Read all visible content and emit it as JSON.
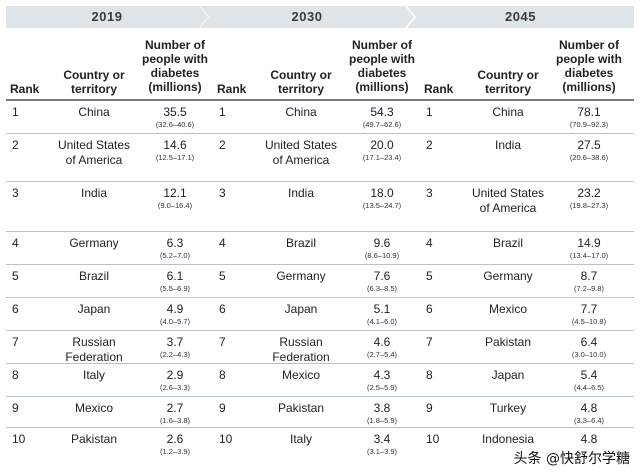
{
  "years": [
    "2019",
    "2030",
    "2045"
  ],
  "headers": {
    "rank": "Rank",
    "country": "Country or territory",
    "number": "Number of people with diabetes (millions)"
  },
  "tables": [
    {
      "year": "2019",
      "rows": [
        {
          "rank": "1",
          "country": "China",
          "value": "35.5",
          "ci": "(32.6–40.6)"
        },
        {
          "rank": "2",
          "country": "United States of America",
          "value": "14.6",
          "ci": "(12.5–17.1)"
        },
        {
          "rank": "3",
          "country": "India",
          "value": "12.1",
          "ci": "(9.0–16.4)"
        },
        {
          "rank": "4",
          "country": "Germany",
          "value": "6.3",
          "ci": "(5.2–7.0)"
        },
        {
          "rank": "5",
          "country": "Brazil",
          "value": "6.1",
          "ci": "(5.5–6.9)"
        },
        {
          "rank": "6",
          "country": "Japan",
          "value": "4.9",
          "ci": "(4.0–5.7)"
        },
        {
          "rank": "7",
          "country": "Russian Federation",
          "value": "3.7",
          "ci": "(2.2–4.3)"
        },
        {
          "rank": "8",
          "country": "Italy",
          "value": "2.9",
          "ci": "(2.6–3.3)"
        },
        {
          "rank": "9",
          "country": "Mexico",
          "value": "2.7",
          "ci": "(1.6–3.8)"
        },
        {
          "rank": "10",
          "country": "Pakistan",
          "value": "2.6",
          "ci": "(1.2–3.9)"
        }
      ]
    },
    {
      "year": "2030",
      "rows": [
        {
          "rank": "1",
          "country": "China",
          "value": "54.3",
          "ci": "(49.7–62.6)"
        },
        {
          "rank": "2",
          "country": "United States of America",
          "value": "20.0",
          "ci": "(17.1–23.4)"
        },
        {
          "rank": "3",
          "country": "India",
          "value": "18.0",
          "ci": "(13.5–24.7)"
        },
        {
          "rank": "4",
          "country": "Brazil",
          "value": "9.6",
          "ci": "(8.6–10.9)"
        },
        {
          "rank": "5",
          "country": "Germany",
          "value": "7.6",
          "ci": "(6.3–8.5)"
        },
        {
          "rank": "6",
          "country": "Japan",
          "value": "5.1",
          "ci": "(4.1–6.0)"
        },
        {
          "rank": "7",
          "country": "Russian Federation",
          "value": "4.6",
          "ci": "(2.7–5.4)"
        },
        {
          "rank": "8",
          "country": "Mexico",
          "value": "4.3",
          "ci": "(2.5–5.9)"
        },
        {
          "rank": "9",
          "country": "Pakistan",
          "value": "3.8",
          "ci": "(1.8–5.9)"
        },
        {
          "rank": "10",
          "country": "Italy",
          "value": "3.4",
          "ci": "(3.1–3.9)"
        }
      ]
    },
    {
      "year": "2045",
      "rows": [
        {
          "rank": "1",
          "country": "China",
          "value": "78.1",
          "ci": "(70.9–92.3)"
        },
        {
          "rank": "2",
          "country": "India",
          "value": "27.5",
          "ci": "(20.6–38.6)"
        },
        {
          "rank": "3",
          "country": "United States of America",
          "value": "23.2",
          "ci": "(19.8–27.3)"
        },
        {
          "rank": "4",
          "country": "Brazil",
          "value": "14.9",
          "ci": "(13.4–17.0)"
        },
        {
          "rank": "5",
          "country": "Germany",
          "value": "8.7",
          "ci": "(7.2–9.8)"
        },
        {
          "rank": "6",
          "country": "Mexico",
          "value": "7.7",
          "ci": "(4.5–10.8)"
        },
        {
          "rank": "7",
          "country": "Pakistan",
          "value": "6.4",
          "ci": "(3.0–10.0)"
        },
        {
          "rank": "8",
          "country": "Japan",
          "value": "5.4",
          "ci": "(4.4–6.5)"
        },
        {
          "rank": "9",
          "country": "Turkey",
          "value": "4.8",
          "ci": "(3.3–6.4)"
        },
        {
          "rank": "10",
          "country": "Indonesia",
          "value": "4.8",
          "ci": ""
        }
      ]
    }
  ],
  "watermark": "头条 @快舒尔学糖",
  "colors": {
    "year_bar": "#dfe4e9",
    "year_text": "#3b3b3b",
    "rule": "#b9c3cc"
  }
}
